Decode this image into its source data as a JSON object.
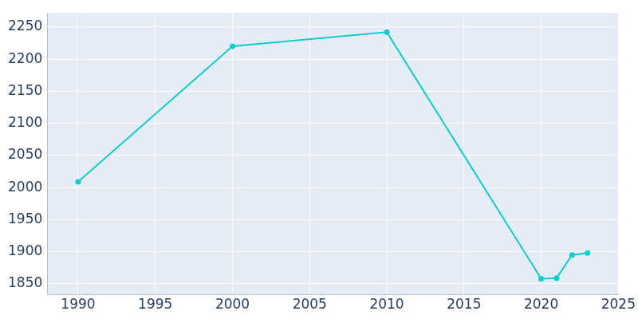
{
  "chart_data": {
    "type": "line",
    "x": [
      1990,
      2000,
      2010,
      2020,
      2021,
      2022,
      2023
    ],
    "values": [
      2009,
      2220,
      2242,
      1858,
      1859,
      1895,
      1898
    ],
    "color": "#11cccc",
    "marker": "circle",
    "xlim": [
      1988,
      2025
    ],
    "xticks": [
      1990,
      1995,
      2000,
      2005,
      2010,
      2015,
      2020,
      2025
    ],
    "ylim": [
      1833,
      2272
    ],
    "yticks": [
      1850,
      1900,
      1950,
      2000,
      2050,
      2100,
      2150,
      2200,
      2250
    ],
    "grid": true
  }
}
